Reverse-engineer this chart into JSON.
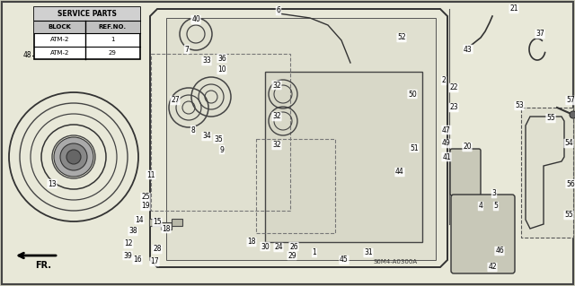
{
  "bg_color": "#c8c8b8",
  "diagram_bg": "#e8e8d8",
  "border_color": "#000000",
  "watermark": "S6M4-A0300A",
  "service_table": {
    "header1": "SERVICE PARTS",
    "col1": "BLOCK",
    "col2": "REF.NO.",
    "rows": [
      [
        "ATM-2",
        "1"
      ],
      [
        "ATM-2",
        "29"
      ]
    ]
  },
  "arrow_label": "FR.",
  "fig_w": 6.4,
  "fig_h": 3.19,
  "dpi": 100
}
